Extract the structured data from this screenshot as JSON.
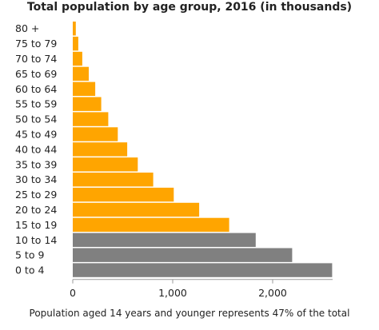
{
  "chart_data": {
    "type": "bar",
    "orientation": "horizontal",
    "title": "Total population by age group, 2016 (in thousands)",
    "note": "Population aged 14 years and younger represents 47% of the total",
    "categories": [
      "80 +",
      "75 to 79",
      "70 to 74",
      "65 to 69",
      "60 to 64",
      "55 to 59",
      "50 to 54",
      "45 to 49",
      "40 to 44",
      "35 to 39",
      "30 to 34",
      "25 to 29",
      "20 to 24",
      "15 to 19",
      "10 to 14",
      "5 to 9",
      "0 to 4"
    ],
    "values": [
      30,
      55,
      95,
      160,
      225,
      285,
      355,
      450,
      545,
      650,
      805,
      1010,
      1265,
      1565,
      1830,
      2195,
      2595
    ],
    "bar_colors": [
      "#ffa500",
      "#ffa500",
      "#ffa500",
      "#ffa500",
      "#ffa500",
      "#ffa500",
      "#ffa500",
      "#ffa500",
      "#ffa500",
      "#ffa500",
      "#ffa500",
      "#ffa500",
      "#ffa500",
      "#ffa500",
      "#808080",
      "#808080",
      "#808080"
    ],
    "xticks": [
      0,
      1000,
      2000
    ],
    "xtick_labels": [
      "0",
      "1,000",
      "2,000"
    ],
    "xlim": [
      0,
      2600
    ],
    "grid": false,
    "colors": {
      "adult": "#ffa500",
      "child": "#808080",
      "text": "#222222",
      "axis": "#999999"
    }
  }
}
